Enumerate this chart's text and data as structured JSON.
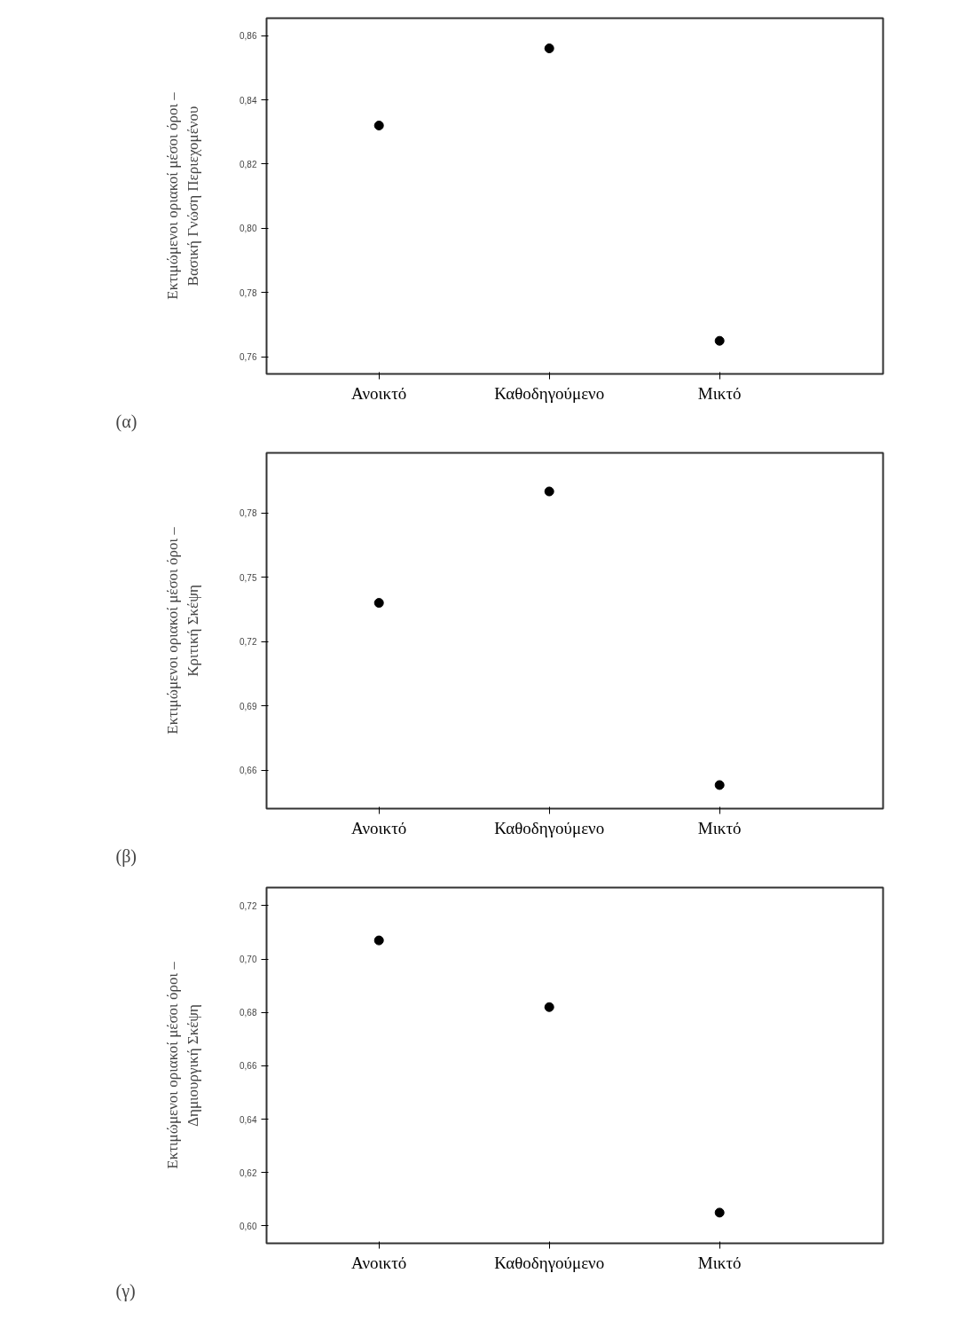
{
  "chart_data": [
    {
      "type": "scatter",
      "categories": [
        "Ανοικτό",
        "Καθοδηγούμενο",
        "Μικτό"
      ],
      "values": [
        0.832,
        0.856,
        0.765
      ],
      "color": "#000000",
      "marker": "circle",
      "grid": false,
      "ylabel": "Εκτιμώμενοι οριακοί μέσοι όροι –\nΒασική Γνώση Περιεχομένου",
      "ylim": [
        0.7547,
        0.8654
      ],
      "yticks": [
        {
          "value": 0.76,
          "label": "0,76"
        },
        {
          "value": 0.78,
          "label": "0,78"
        },
        {
          "value": 0.8,
          "label": "0,80"
        },
        {
          "value": 0.82,
          "label": "0,82"
        },
        {
          "value": 0.84,
          "label": "0,84"
        },
        {
          "value": 0.86,
          "label": "0,86"
        }
      ],
      "annotations": [
        "(α)"
      ]
    },
    {
      "type": "scatter",
      "categories": [
        "Ανοικτό",
        "Καθοδηγούμενο",
        "Μικτό"
      ],
      "values": [
        0.738,
        0.79,
        0.653
      ],
      "color": "#000000",
      "marker": "circle",
      "grid": false,
      "ylabel": "Εκτιμώμενοι οριακοί μέσοι όροι –\nΚριτική Σκέψη",
      "ylim": [
        0.642,
        0.808
      ],
      "yticks": [
        {
          "value": 0.66,
          "label": "0,66"
        },
        {
          "value": 0.69,
          "label": "0,69"
        },
        {
          "value": 0.72,
          "label": "0,72"
        },
        {
          "value": 0.75,
          "label": "0,75"
        },
        {
          "value": 0.78,
          "label": "0,78"
        }
      ],
      "annotations": [
        "(β)"
      ]
    },
    {
      "type": "scatter",
      "categories": [
        "Ανοικτό",
        "Καθοδηγούμενο",
        "Μικτό"
      ],
      "values": [
        0.707,
        0.682,
        0.605
      ],
      "color": "#000000",
      "marker": "circle",
      "grid": false,
      "ylabel": "Εκτιμώμενοι οριακοί μέσοι όροι –\nΔημιουργική Σκέψη",
      "ylim": [
        0.5935,
        0.7268
      ],
      "yticks": [
        {
          "value": 0.6,
          "label": "0,60"
        },
        {
          "value": 0.62,
          "label": "0,62"
        },
        {
          "value": 0.64,
          "label": "0,64"
        },
        {
          "value": 0.66,
          "label": "0,66"
        },
        {
          "value": 0.68,
          "label": "0,68"
        },
        {
          "value": 0.7,
          "label": "0,70"
        },
        {
          "value": 0.72,
          "label": "0,72"
        }
      ],
      "annotations": [
        "(γ)"
      ]
    }
  ]
}
